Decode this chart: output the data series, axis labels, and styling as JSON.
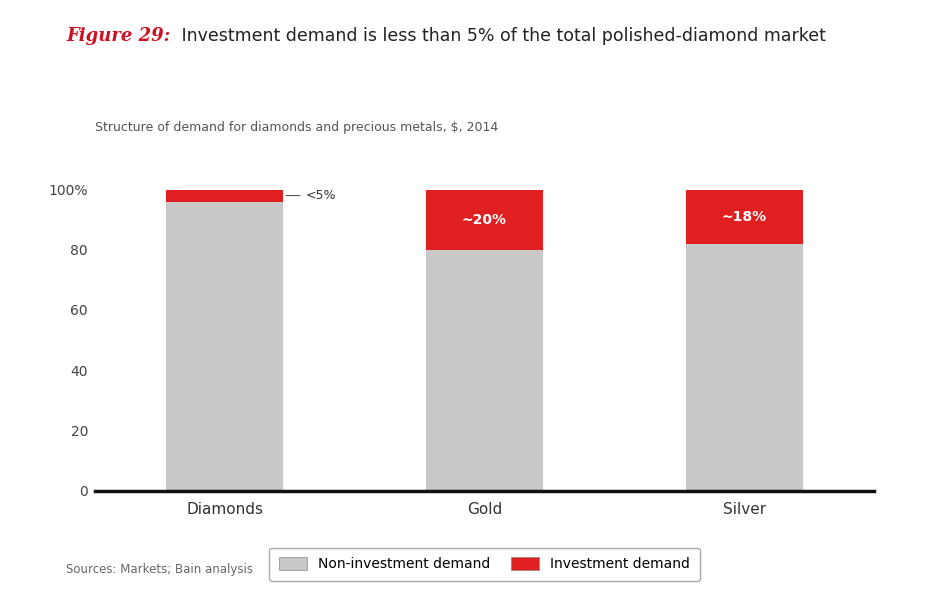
{
  "categories": [
    "Diamonds",
    "Gold",
    "Silver"
  ],
  "non_investment": [
    96,
    80,
    82
  ],
  "investment": [
    4,
    20,
    18
  ],
  "bar_color_gray": "#C8C8C8",
  "bar_color_red": "#E02020",
  "bar_width": 0.45,
  "title_fig": "Figure 29:",
  "title_fig_color": "#CC1122",
  "title_text": " Investment demand is less than 5% of the total polished-diamond market",
  "title_text_color": "#222222",
  "subtitle": "Structure of demand for diamonds and precious metals, $, 2014",
  "yticks": [
    0,
    20,
    40,
    60,
    80,
    100
  ],
  "ytick_labels": [
    "0",
    "20",
    "40",
    "60",
    "80",
    "100%"
  ],
  "legend_labels": [
    "Non-investment demand",
    "Investment demand"
  ],
  "legend_colors": [
    "#C8C8C8",
    "#E02020"
  ],
  "source_text": "Sources: Markets; Bain analysis",
  "background_color": "#FFFFFF",
  "ylim": [
    0,
    108
  ],
  "xlim": [
    -0.5,
    2.5
  ]
}
